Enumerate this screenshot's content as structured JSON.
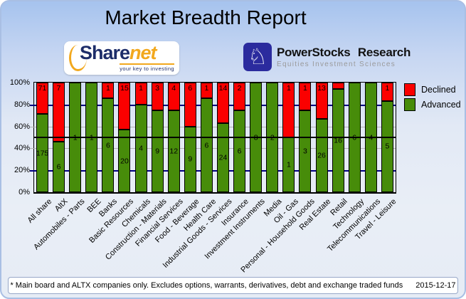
{
  "title": "Market Breadth Report",
  "header": {
    "sharenet_logo": {
      "text_primary": "Share",
      "text_accent": "net",
      "tagline": "your key to investing",
      "color_primary": "#1d2d69",
      "color_accent": "#f2a81d"
    },
    "powerstocks_logo": {
      "name": "PowerStocks Research",
      "tagline": "Equities Investment Sciences",
      "icon": "chess-knight-icon",
      "icon_bg": "#2b2b9e"
    }
  },
  "legend": {
    "position": "top-right",
    "items": [
      {
        "label": "Declined",
        "color": "#fb0000"
      },
      {
        "label": "Advanced",
        "color": "#478c0a"
      }
    ]
  },
  "footer": {
    "note": "* Main board and ALTX companies only. Excludes options, warrants, derivatives, debt and exchange traded funds",
    "date": "2015-12-17"
  },
  "chart_data": {
    "type": "bar",
    "stacked": true,
    "percent_axis": true,
    "ylim": [
      0,
      100
    ],
    "y_ticks": [
      "0%",
      "20%",
      "40%",
      "60%",
      "80%",
      "100%"
    ],
    "reference_line": 50,
    "grid": "gridlines at 20/40/60/80 behind bars; navy at 20 & 80, gray at 40 & 60; solid black line at 50%",
    "legend_position": "top-right",
    "categories": [
      "All share",
      "AltX",
      "Automobiles - Parts",
      "BEE",
      "Banks",
      "Basic Resources",
      "Chemicals",
      "Construction - Materials",
      "Financial Services",
      "Food - Beverage",
      "Health Care",
      "Industrial Goods - Services",
      "Insurance",
      "Investment Instruments",
      "Media",
      "Oil - Gas",
      "Personal - Household Goods",
      "Real Estate",
      "Retail",
      "Technology",
      "Telecommunications",
      "Travel - Leisure"
    ],
    "series": [
      {
        "name": "Declined",
        "color": "#fb0000",
        "values": [
          71,
          7,
          0,
          0,
          1,
          15,
          1,
          3,
          4,
          6,
          1,
          14,
          2,
          0,
          0,
          1,
          1,
          13,
          1,
          0,
          0,
          1
        ],
        "bar_labels": [
          "71",
          "7",
          "",
          "",
          "1",
          "15",
          "1",
          "3",
          "4",
          "6",
          "1",
          "14",
          "2",
          "",
          "",
          "1",
          "1",
          "13",
          "",
          "",
          "",
          "1"
        ]
      },
      {
        "name": "Advanced",
        "color": "#478c0a",
        "values": [
          175,
          6,
          1,
          1,
          6,
          20,
          4,
          9,
          12,
          9,
          6,
          24,
          6,
          8,
          2,
          1,
          3,
          26,
          16,
          6,
          4,
          5
        ],
        "bar_labels": [
          "175",
          "6",
          "1",
          "1",
          "6",
          "20",
          "4",
          "9",
          "12",
          "9",
          "6",
          "24",
          "6",
          "8",
          "2",
          "1",
          "3",
          "26",
          "16",
          "6",
          "4",
          "5"
        ]
      }
    ]
  }
}
